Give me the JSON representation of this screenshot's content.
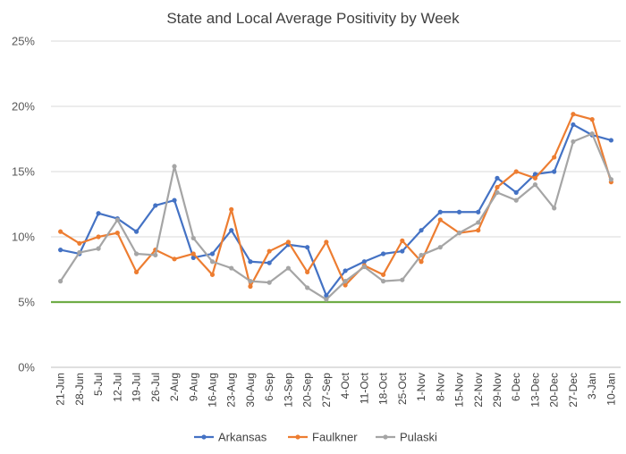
{
  "chart_data": {
    "type": "line",
    "title": "State and Local Average Positivity by Week",
    "xlabel": "",
    "ylabel": "",
    "ylim": [
      0,
      25
    ],
    "yticks": [
      0,
      5,
      10,
      15,
      20,
      25
    ],
    "ytick_labels": [
      "0%",
      "5%",
      "10%",
      "15%",
      "20%",
      "25%"
    ],
    "grid": true,
    "legend_position": "bottom",
    "categories": [
      "21-Jun",
      "28-Jun",
      "5-Jul",
      "12-Jul",
      "19-Jul",
      "26-Jul",
      "2-Aug",
      "9-Aug",
      "16-Aug",
      "23-Aug",
      "30-Aug",
      "6-Sep",
      "13-Sep",
      "20-Sep",
      "27-Sep",
      "4-Oct",
      "11-Oct",
      "18-Oct",
      "25-Oct",
      "1-Nov",
      "8-Nov",
      "15-Nov",
      "22-Nov",
      "29-Nov",
      "6-Dec",
      "13-Dec",
      "20-Dec",
      "27-Dec",
      "3-Jan",
      "10-Jan"
    ],
    "series": [
      {
        "name": "Arkansas",
        "color": "#4472C4",
        "values": [
          9.0,
          8.7,
          11.8,
          11.4,
          10.4,
          12.4,
          12.8,
          8.4,
          8.7,
          10.5,
          8.1,
          8.0,
          9.4,
          9.2,
          5.5,
          7.4,
          8.1,
          8.7,
          8.9,
          10.5,
          11.9,
          11.9,
          11.9,
          14.5,
          13.4,
          14.8,
          15.0,
          18.6,
          17.8,
          17.4
        ]
      },
      {
        "name": "Faulkner",
        "color": "#ED7D31",
        "values": [
          10.4,
          9.5,
          10.0,
          10.3,
          7.3,
          9.0,
          8.3,
          8.7,
          7.1,
          12.1,
          6.2,
          8.9,
          9.6,
          7.3,
          9.6,
          6.3,
          7.8,
          7.1,
          9.7,
          8.1,
          11.3,
          10.3,
          10.5,
          13.8,
          15.0,
          14.5,
          16.1,
          19.4,
          19.0,
          14.2
        ]
      },
      {
        "name": "Pulaski",
        "color": "#A5A5A5",
        "values": [
          6.6,
          8.8,
          9.1,
          11.3,
          8.7,
          8.6,
          15.4,
          9.9,
          8.1,
          7.6,
          6.6,
          6.5,
          7.6,
          6.1,
          5.2,
          6.6,
          7.7,
          6.6,
          6.7,
          8.6,
          9.2,
          10.3,
          11.1,
          13.4,
          12.8,
          14.0,
          12.2,
          17.3,
          17.9,
          14.4
        ]
      }
    ],
    "reference_line": {
      "value": 5,
      "color": "#70AD47"
    }
  }
}
